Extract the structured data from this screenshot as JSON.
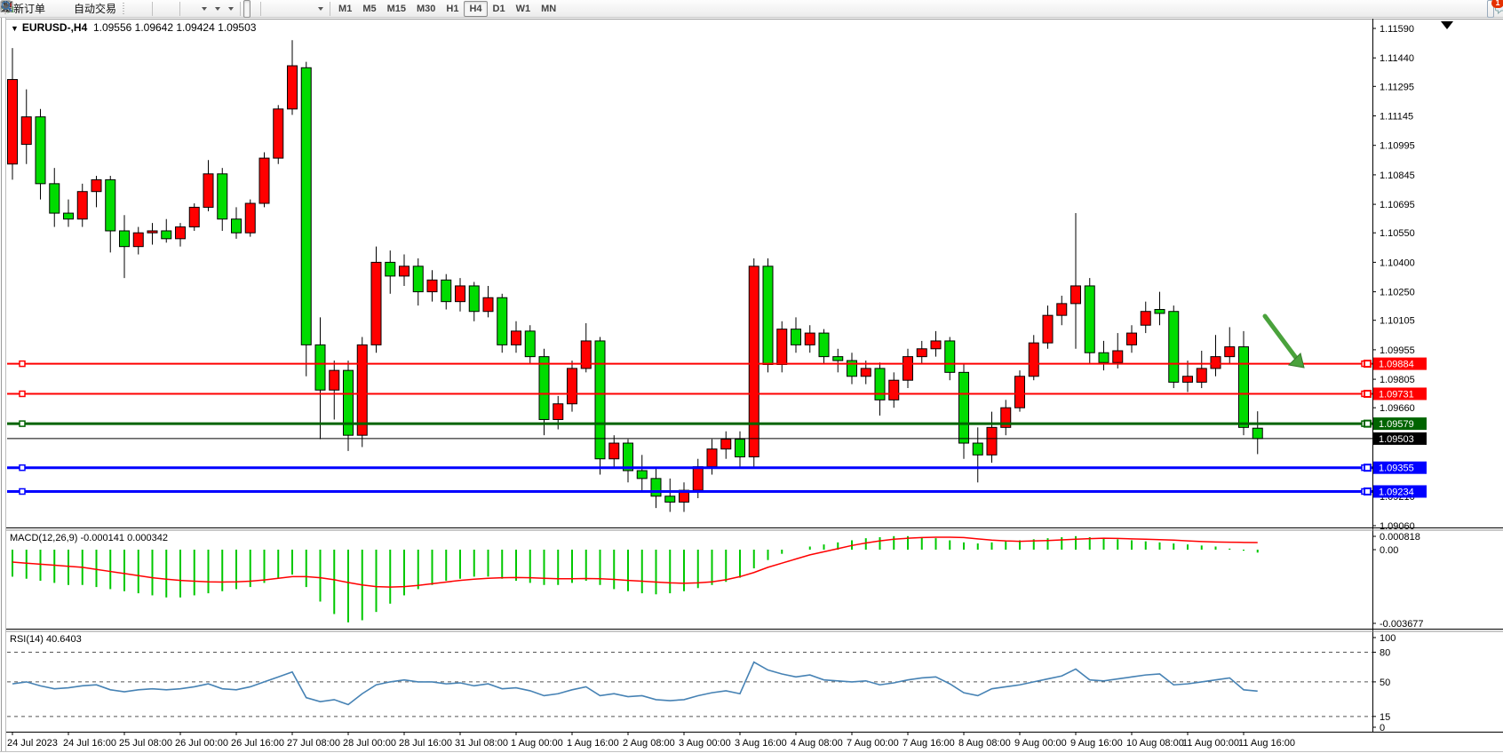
{
  "toolbar": {
    "new_order_label": "新订单",
    "auto_trading_label": "自动交易",
    "timeframes": [
      "M1",
      "M5",
      "M15",
      "M30",
      "H1",
      "H4",
      "D1",
      "W1",
      "MN"
    ],
    "active_timeframe": "H4",
    "notification_badge": "1"
  },
  "chart": {
    "collapse_marker": "▼",
    "title_symbol": "EURUSD-,H4",
    "title_ohlc": "1.09556 1.09642 1.09424 1.09503",
    "y_axis_labels": [
      "1.11590",
      "1.11440",
      "1.11295",
      "1.11145",
      "1.10995",
      "1.10845",
      "1.10695",
      "1.10550",
      "1.10400",
      "1.10250",
      "1.10105",
      "1.09955",
      "1.09805",
      "1.09660",
      "1.09510",
      "1.09360",
      "1.09210",
      "1.09060"
    ],
    "x_axis_labels": [
      "24 Jul 2023",
      "24 Jul 16:00",
      "25 Jul 08:00",
      "26 Jul 00:00",
      "26 Jul 16:00",
      "27 Jul 08:00",
      "28 Jul 00:00",
      "28 Jul 16:00",
      "31 Jul 08:00",
      "1 Aug 00:00",
      "1 Aug 16:00",
      "2 Aug 08:00",
      "3 Aug 00:00",
      "3 Aug 16:00",
      "4 Aug 08:00",
      "7 Aug 00:00",
      "7 Aug 16:00",
      "8 Aug 08:00",
      "9 Aug 00:00",
      "9 Aug 16:00",
      "10 Aug 08:00",
      "11 Aug 00:00",
      "11 Aug 16:00"
    ],
    "price_levels": [
      {
        "label": "1.09884",
        "price": 1.09884,
        "color": "#FF0000",
        "thickness": 2
      },
      {
        "label": "1.09731",
        "price": 1.09731,
        "color": "#FF0000",
        "thickness": 2
      },
      {
        "label": "1.09579",
        "price": 1.09579,
        "color": "#006400",
        "thickness": 3
      },
      {
        "label": "1.09355",
        "price": 1.09355,
        "color": "#0000FF",
        "thickness": 3
      },
      {
        "label": "1.09234",
        "price": 1.09234,
        "color": "#0000FF",
        "thickness": 3
      }
    ],
    "current_price": {
      "label": "1.09503",
      "price": 1.09503,
      "color": "#000000"
    },
    "colors": {
      "bull": "#FF0000",
      "bear": "#00DC00",
      "wick": "#000000",
      "body_border": "#000000"
    },
    "annotation_arrow": {
      "color": "#4AA23C",
      "from": [
        1424,
        356
      ],
      "to": [
        1468,
        414
      ]
    },
    "candles": [
      [
        1.109,
        1.1149,
        1.1082,
        1.1133
      ],
      [
        1.11,
        1.1128,
        1.109,
        1.1114
      ],
      [
        1.1114,
        1.1118,
        1.1072,
        1.108
      ],
      [
        1.108,
        1.1088,
        1.1058,
        1.1065
      ],
      [
        1.1065,
        1.1072,
        1.1058,
        1.1062
      ],
      [
        1.1062,
        1.108,
        1.1058,
        1.1076
      ],
      [
        1.1076,
        1.1084,
        1.1068,
        1.1082
      ],
      [
        1.1082,
        1.1084,
        1.1045,
        1.1056
      ],
      [
        1.1056,
        1.1064,
        1.1032,
        1.1048
      ],
      [
        1.1048,
        1.1058,
        1.1044,
        1.1055
      ],
      [
        1.1055,
        1.106,
        1.1049,
        1.1056
      ],
      [
        1.1056,
        1.1062,
        1.105,
        1.1052
      ],
      [
        1.1052,
        1.106,
        1.1048,
        1.1058
      ],
      [
        1.1058,
        1.107,
        1.1056,
        1.1068
      ],
      [
        1.1068,
        1.1092,
        1.1066,
        1.1085
      ],
      [
        1.1085,
        1.1088,
        1.1056,
        1.1062
      ],
      [
        1.1062,
        1.1068,
        1.1052,
        1.1055
      ],
      [
        1.1055,
        1.1072,
        1.1053,
        1.107
      ],
      [
        1.107,
        1.1096,
        1.1068,
        1.1093
      ],
      [
        1.1093,
        1.112,
        1.109,
        1.1118
      ],
      [
        1.1118,
        1.1153,
        1.1115,
        1.114
      ],
      [
        1.1139,
        1.1142,
        1.0982,
        1.0998
      ],
      [
        1.0998,
        1.1012,
        1.095,
        1.0975
      ],
      [
        1.0975,
        1.099,
        1.096,
        1.0985
      ],
      [
        1.0985,
        1.099,
        1.0944,
        1.0952
      ],
      [
        1.0952,
        1.1002,
        1.0946,
        1.0998
      ],
      [
        1.0998,
        1.1048,
        1.0994,
        1.104
      ],
      [
        1.104,
        1.1046,
        1.1024,
        1.1033
      ],
      [
        1.1033,
        1.1044,
        1.1028,
        1.1038
      ],
      [
        1.1038,
        1.1042,
        1.1018,
        1.1025
      ],
      [
        1.1025,
        1.1036,
        1.102,
        1.1031
      ],
      [
        1.1031,
        1.1034,
        1.1016,
        1.102
      ],
      [
        1.102,
        1.1032,
        1.1015,
        1.1028
      ],
      [
        1.1028,
        1.103,
        1.101,
        1.1015
      ],
      [
        1.1015,
        1.1028,
        1.1012,
        1.1022
      ],
      [
        1.1022,
        1.1024,
        1.0994,
        1.0998
      ],
      [
        1.0998,
        1.101,
        1.0994,
        1.1005
      ],
      [
        1.1005,
        1.1008,
        1.0988,
        1.0992
      ],
      [
        1.0992,
        1.0996,
        1.0952,
        1.096
      ],
      [
        1.096,
        1.0972,
        1.0955,
        1.0968
      ],
      [
        1.0968,
        1.099,
        1.0964,
        1.0986
      ],
      [
        1.0986,
        1.1009,
        1.0984,
        1.1
      ],
      [
        1.1,
        1.1002,
        1.0932,
        1.094
      ],
      [
        1.094,
        1.0952,
        1.0936,
        1.0948
      ],
      [
        1.0948,
        1.095,
        1.0928,
        1.0934
      ],
      [
        1.0934,
        1.0942,
        1.0924,
        1.093
      ],
      [
        1.093,
        1.0936,
        1.0915,
        1.0921
      ],
      [
        1.0921,
        1.093,
        1.0913,
        1.0918
      ],
      [
        1.0918,
        1.0928,
        1.0913,
        1.0924
      ],
      [
        1.0924,
        1.094,
        1.092,
        1.0936
      ],
      [
        1.0936,
        1.095,
        1.0932,
        1.0945
      ],
      [
        1.0945,
        1.0954,
        1.094,
        1.095
      ],
      [
        1.095,
        1.0954,
        1.0936,
        1.0941
      ],
      [
        1.0941,
        1.1042,
        1.0936,
        1.1038
      ],
      [
        1.1038,
        1.1042,
        1.0984,
        1.0988
      ],
      [
        1.0988,
        1.101,
        1.0984,
        1.1006
      ],
      [
        1.1006,
        1.1012,
        1.0994,
        1.0998
      ],
      [
        1.0998,
        1.1008,
        1.0994,
        1.1004
      ],
      [
        1.1004,
        1.1006,
        1.0988,
        1.0992
      ],
      [
        1.0992,
        1.0996,
        1.0984,
        1.099
      ],
      [
        1.099,
        1.0994,
        1.0978,
        1.0982
      ],
      [
        1.0982,
        1.099,
        1.0978,
        1.0986
      ],
      [
        1.0986,
        1.0989,
        1.0962,
        1.097
      ],
      [
        1.097,
        1.0984,
        1.0966,
        1.098
      ],
      [
        1.098,
        1.0996,
        1.0976,
        1.0992
      ],
      [
        1.0992,
        1.1,
        1.0988,
        1.0996
      ],
      [
        1.0996,
        1.1005,
        1.0992,
        1.1
      ],
      [
        1.1,
        1.1002,
        1.098,
        1.0984
      ],
      [
        1.0984,
        1.0988,
        1.094,
        1.0948
      ],
      [
        1.0948,
        1.0956,
        1.0928,
        1.0942
      ],
      [
        1.0942,
        1.0964,
        1.0938,
        1.0956
      ],
      [
        1.0956,
        1.097,
        1.0952,
        1.0966
      ],
      [
        1.0966,
        1.0985,
        1.0964,
        1.0982
      ],
      [
        1.0982,
        1.1003,
        1.098,
        1.0999
      ],
      [
        1.0999,
        1.1018,
        1.0996,
        1.1013
      ],
      [
        1.1013,
        1.1023,
        1.1008,
        1.1019
      ],
      [
        1.1019,
        1.1065,
        1.0996,
        1.1028
      ],
      [
        1.1028,
        1.1032,
        1.0988,
        1.0994
      ],
      [
        1.0994,
        1.1,
        1.0985,
        1.0989
      ],
      [
        1.0989,
        1.1004,
        1.0986,
        1.0995
      ],
      [
        1.0998,
        1.1008,
        1.0994,
        1.1004
      ],
      [
        1.1008,
        1.102,
        1.1004,
        1.1015
      ],
      [
        1.1016,
        1.1025,
        1.1008,
        1.1014
      ],
      [
        1.1015,
        1.1018,
        1.0976,
        1.0979
      ],
      [
        1.0979,
        1.099,
        1.0974,
        1.0982
      ],
      [
        1.0979,
        1.0995,
        1.0976,
        1.0986
      ],
      [
        1.0986,
        1.1003,
        1.0982,
        1.0992
      ],
      [
        1.0992,
        1.1007,
        1.0988,
        1.0997
      ],
      [
        1.0997,
        1.1005,
        1.0952,
        1.0956
      ],
      [
        1.09556,
        1.09642,
        1.09424,
        1.09503
      ]
    ]
  },
  "macd": {
    "label": "MACD(12,26,9) -0.000141 0.000342",
    "axis_labels": [
      "0.000818",
      "0.00",
      "-0.003677"
    ],
    "axis_values": [
      0.000818,
      0,
      -0.003677
    ],
    "value_unit": 0.0001,
    "colors": {
      "histogram": "#00C800",
      "signal": "#FF0000"
    },
    "histogram": [
      -13,
      -14,
      -15,
      -16,
      -17,
      -17,
      -18,
      -19,
      -20,
      -21,
      -22,
      -23,
      -23,
      -22,
      -21,
      -20,
      -19,
      -18,
      -16,
      -14,
      -12,
      -18,
      -25,
      -31,
      -35,
      -34,
      -30,
      -26,
      -22,
      -19,
      -17,
      -15,
      -14,
      -13,
      -13,
      -14,
      -15,
      -16,
      -17,
      -17,
      -16,
      -15,
      -17,
      -19,
      -20,
      -21,
      -21.5,
      -21,
      -20,
      -18.5,
      -17,
      -15.5,
      -13.5,
      -9,
      -5,
      -2,
      0,
      1.5,
      2.5,
      3.5,
      4.5,
      5.5,
      6,
      6.5,
      6.5,
      6,
      5.5,
      4.5,
      3.5,
      3,
      3.5,
      4,
      4.5,
      5,
      5.5,
      6,
      6.5,
      6,
      5.5,
      5,
      4.5,
      4,
      3.5,
      3,
      2.5,
      2,
      1.5,
      0.5,
      -0.5,
      -1.41
    ],
    "signal": [
      -6,
      -6.5,
      -7,
      -7.5,
      -8,
      -8.5,
      -9.5,
      -10.5,
      -11.5,
      -12.5,
      -13.5,
      -14.2,
      -14.8,
      -15.2,
      -15.5,
      -15.6,
      -15.5,
      -15.2,
      -14.6,
      -13.8,
      -13,
      -13,
      -13.5,
      -14.5,
      -15.8,
      -17,
      -17.8,
      -18,
      -17.8,
      -17.2,
      -16.4,
      -15.6,
      -14.8,
      -14.2,
      -13.8,
      -13.5,
      -13.4,
      -13.5,
      -13.8,
      -14,
      -14,
      -13.9,
      -14,
      -14.3,
      -14.8,
      -15.2,
      -15.6,
      -16,
      -16.2,
      -16,
      -15.5,
      -14.5,
      -13,
      -11,
      -8.5,
      -6.5,
      -4.5,
      -2.5,
      -1,
      0.5,
      2,
      3.2,
      4.2,
      5,
      5.5,
      5.8,
      6,
      6,
      5.8,
      5.2,
      4.6,
      4.2,
      4,
      4.2,
      4.4,
      4.7,
      5,
      5.3,
      5.5,
      5.4,
      5.2,
      5,
      4.8,
      4.6,
      4.2,
      3.9,
      3.7,
      3.6,
      3.5,
      3.42
    ]
  },
  "rsi": {
    "label": "RSI(14) 40.6403",
    "axis_labels": [
      "100",
      "80",
      "50",
      "15",
      "0"
    ],
    "axis_values": [
      100,
      80,
      50,
      15,
      0
    ],
    "level_lines": [
      80,
      50,
      15
    ],
    "color": "#4682B4",
    "values": [
      48,
      50,
      46,
      43,
      44,
      46,
      47,
      42,
      40,
      42,
      43,
      42,
      43,
      45,
      48,
      43,
      42,
      45,
      50,
      55,
      60,
      34,
      30,
      32,
      27,
      38,
      47,
      50,
      52,
      50,
      50,
      48,
      49,
      46,
      48,
      43,
      44,
      41,
      36,
      38,
      42,
      45,
      36,
      38,
      35,
      36,
      32,
      31,
      32,
      36,
      39,
      41,
      38,
      70,
      62,
      58,
      55,
      57,
      52,
      51,
      50,
      51,
      47,
      49,
      52,
      54,
      55,
      48,
      39,
      36,
      43,
      45,
      47,
      50,
      53,
      56,
      63,
      52,
      51,
      53,
      55,
      57,
      58,
      47,
      48,
      50,
      52,
      54,
      42,
      40.64
    ]
  }
}
